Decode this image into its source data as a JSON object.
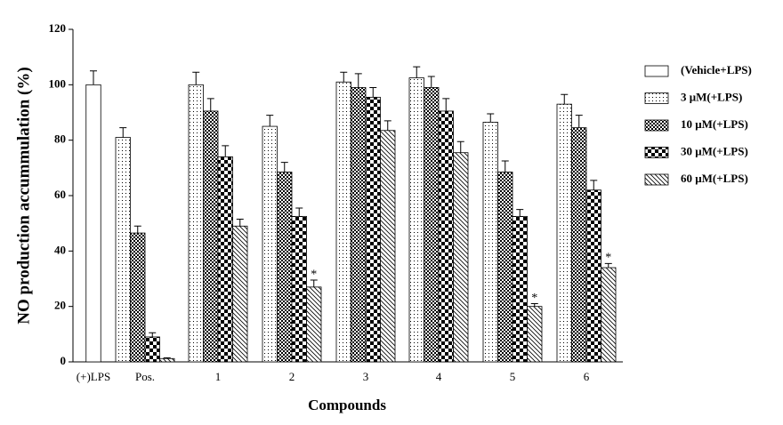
{
  "chart_data": {
    "type": "bar",
    "x_label": "Compounds",
    "y_label": "NO production accummulation (%)",
    "categories": [
      "(+)LPS",
      "Pos.",
      "1",
      "2",
      "3",
      "4",
      "5",
      "6"
    ],
    "series": [
      {
        "name": "(Vehicle+LPS)",
        "color": "#000000",
        "pattern": "none",
        "values": [
          100,
          null,
          null,
          null,
          null,
          null,
          null,
          null
        ],
        "errors": [
          5,
          null,
          null,
          null,
          null,
          null,
          null,
          null
        ]
      },
      {
        "name": "3 μM(+LPS)",
        "color": "#000000",
        "pattern": "dots",
        "values": [
          null,
          81,
          100,
          85,
          101,
          102.5,
          86.5,
          93
        ],
        "errors": [
          null,
          3.5,
          4.5,
          4,
          3.5,
          4,
          3,
          3.5
        ]
      },
      {
        "name": "10 μM(+LPS)",
        "color": "#000000",
        "pattern": "fine-check",
        "values": [
          null,
          46.5,
          90.5,
          68.5,
          99,
          99,
          68.5,
          84.5
        ],
        "errors": [
          null,
          2.5,
          4.5,
          3.5,
          5,
          4,
          4,
          4.5
        ]
      },
      {
        "name": "30 μM(+LPS)",
        "color": "#000000",
        "pattern": "coarse-check",
        "values": [
          null,
          9,
          74,
          52.5,
          95.5,
          90.5,
          52.5,
          62
        ],
        "errors": [
          null,
          1.5,
          4,
          3,
          3.5,
          4.5,
          2.5,
          3.5
        ]
      },
      {
        "name": "60 μM(+LPS)",
        "color": "#000000",
        "pattern": "hatch",
        "values": [
          null,
          1.2,
          49,
          27,
          83.5,
          75.5,
          20,
          34
        ],
        "errors": [
          null,
          0.3,
          2.5,
          2.5,
          3.5,
          4,
          1,
          1.5
        ]
      }
    ],
    "annotations": [
      {
        "text": "*",
        "series": 4,
        "category": 3
      },
      {
        "text": "*",
        "series": 4,
        "category": 6
      },
      {
        "text": "*",
        "series": 4,
        "category": 7
      }
    ],
    "ylim": [
      0,
      120
    ],
    "yticks": [
      0,
      20,
      40,
      60,
      80,
      100,
      120
    ],
    "grid": false
  }
}
